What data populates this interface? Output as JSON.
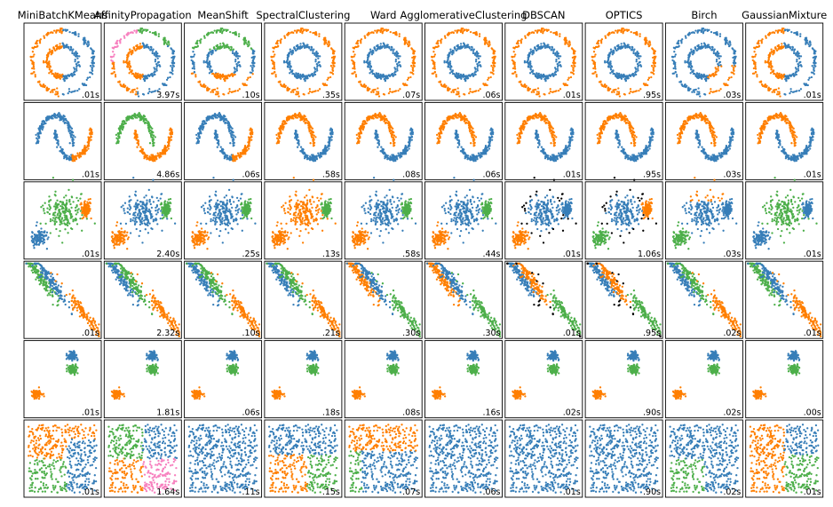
{
  "caption": "",
  "chart_data": {
    "type": "scatter",
    "grid": false,
    "algorithms": [
      "MiniBatchKMeans",
      "AffinityPropagation",
      "MeanShift",
      "SpectralClustering",
      "Ward",
      "AgglomerativeClustering",
      "DBSCAN",
      "OPTICS",
      "Birch",
      "GaussianMixture"
    ],
    "datasets": [
      "noisy_circles",
      "noisy_moons",
      "varied",
      "aniso",
      "blobs",
      "no_structure"
    ],
    "colors": {
      "c0": "#377eb8",
      "c1": "#ff7f00",
      "c2": "#4daf4a",
      "c3": "#f781bf",
      "noise": "#000000"
    },
    "times": [
      [
        ".01s",
        "3.97s",
        ".10s",
        ".35s",
        ".07s",
        ".06s",
        ".01s",
        ".95s",
        ".03s",
        ".01s"
      ],
      [
        ".01s",
        "4.86s",
        ".06s",
        ".58s",
        ".08s",
        ".06s",
        ".01s",
        ".95s",
        ".03s",
        ".01s"
      ],
      [
        ".01s",
        "2.40s",
        ".25s",
        ".13s",
        ".58s",
        ".44s",
        ".01s",
        "1.06s",
        ".03s",
        ".01s"
      ],
      [
        ".01s",
        "2.32s",
        ".10s",
        ".21s",
        ".30s",
        ".30s",
        ".01s",
        ".95s",
        ".02s",
        ".01s"
      ],
      [
        ".01s",
        "1.81s",
        ".06s",
        ".18s",
        ".08s",
        ".16s",
        ".02s",
        ".90s",
        ".02s",
        ".00s"
      ],
      [
        ".01s",
        "1.64s",
        ".11s",
        ".15s",
        ".07s",
        ".06s",
        ".01s",
        ".90s",
        ".02s",
        ".01s"
      ]
    ]
  }
}
